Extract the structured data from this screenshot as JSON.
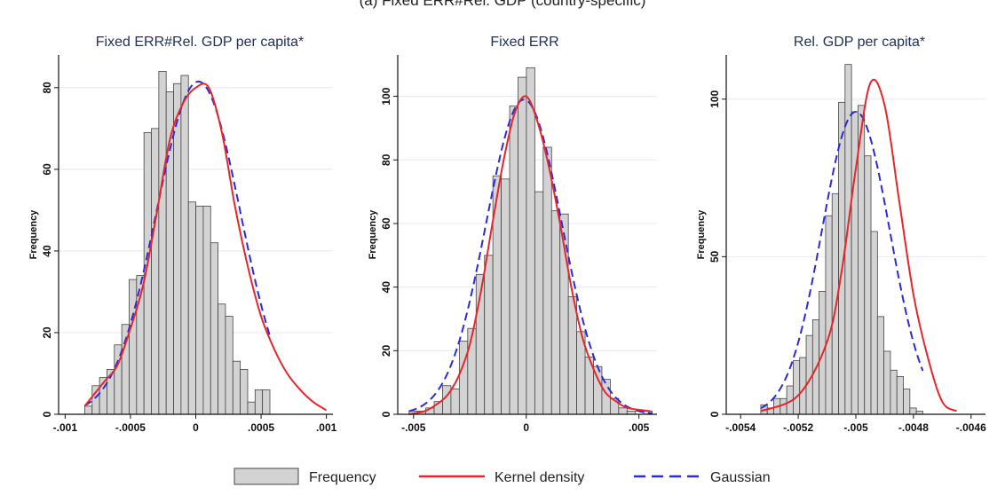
{
  "caption": "(a) Fixed ERR#Rel. GDP (country-specific)",
  "colors": {
    "bar_fill": "#d3d3d3",
    "bar_stroke": "#444444",
    "kernel": "#e8252a",
    "gaussian": "#2b2bd8",
    "grid": "#e8e8ee",
    "title": "#1f2f5a"
  },
  "legend": {
    "position": "bottom",
    "items": [
      "Frequency",
      "Kernel density",
      "Gaussian"
    ]
  },
  "chart_data": [
    {
      "type": "bar",
      "title": "Fixed ERR#Rel. GDP per capita*",
      "ylabel": "Frequency",
      "xlim": [
        -0.00105,
        0.00105
      ],
      "ylim": [
        0,
        88
      ],
      "xticks": [
        -0.001,
        -0.0005,
        0,
        0.0005,
        0.001
      ],
      "xtick_labels": [
        "-.001",
        "-.0005",
        "0",
        ".0005",
        ".001"
      ],
      "yticks": [
        0,
        20,
        40,
        60,
        80
      ],
      "bin_start": -0.00085,
      "bin_width": 5.67e-05,
      "values": [
        2,
        7,
        9,
        11,
        17,
        22,
        33,
        34,
        69,
        70,
        84,
        79,
        81,
        83,
        52,
        51,
        51,
        42,
        27,
        24,
        13,
        11,
        3,
        6,
        6
      ],
      "gaussian": {
        "mean": 2e-05,
        "sd": 0.000322,
        "peak": 81.5
      },
      "kernel": {
        "x": [
          -0.00085,
          -0.0007,
          -0.0006,
          -0.0005,
          -0.0004,
          -0.0003,
          -0.0002,
          -0.0001,
          0,
          0.0001,
          0.0002,
          0.0003,
          0.0004,
          0.0005,
          0.0006,
          0.0007,
          0.0008,
          0.0009,
          0.001
        ],
        "y": [
          2,
          8,
          12,
          21,
          32,
          49,
          67,
          76,
          80,
          80,
          69,
          51,
          36,
          24,
          16,
          10,
          6,
          3,
          1
        ]
      }
    },
    {
      "type": "bar",
      "title": "Fixed ERR",
      "ylabel": "Frequency",
      "xlim": [
        -0.0057,
        0.0058
      ],
      "ylim": [
        0,
        113
      ],
      "xticks": [
        -0.005,
        0,
        0.005
      ],
      "xtick_labels": [
        "-.005",
        "0",
        ".005"
      ],
      "yticks": [
        0,
        20,
        40,
        60,
        80,
        100
      ],
      "bin_start": -0.0052,
      "bin_width": 0.000372,
      "values": [
        1,
        1,
        2,
        4,
        9,
        8,
        23,
        27,
        44,
        50,
        75,
        74,
        97,
        106,
        109,
        70,
        84,
        64,
        63,
        37,
        26,
        18,
        15,
        11,
        5,
        2,
        1,
        0,
        1
      ],
      "gaussian": {
        "mean": -0.0001,
        "sd": 0.00168,
        "peak": 99
      },
      "kernel": {
        "x": [
          -0.0052,
          -0.0045,
          -0.004,
          -0.0035,
          -0.003,
          -0.0025,
          -0.002,
          -0.0015,
          -0.001,
          -0.0005,
          0,
          0.0005,
          0.001,
          0.0015,
          0.002,
          0.0025,
          0.003,
          0.0035,
          0.004,
          0.0045,
          0.0055
        ],
        "y": [
          0,
          1,
          3,
          6,
          12,
          22,
          39,
          60,
          80,
          95,
          100,
          92,
          78,
          60,
          40,
          24,
          14,
          7,
          4,
          2,
          1
        ]
      }
    },
    {
      "type": "bar",
      "title": "Rel. GDP per capita*",
      "ylabel": "Frequency",
      "xlim": [
        -0.00545,
        -0.00455
      ],
      "ylim": [
        0,
        114
      ],
      "xticks": [
        -0.0054,
        -0.0052,
        -0.005,
        -0.0048,
        -0.0046
      ],
      "xtick_labels": [
        "-.0054",
        "-.0052",
        "-.005",
        "-.0048",
        "-.0046"
      ],
      "yticks": [
        0,
        50,
        100
      ],
      "bin_start": -0.00533,
      "bin_width": 2.25e-05,
      "values": [
        3,
        2,
        5,
        5,
        9,
        17,
        18,
        25,
        30,
        39,
        63,
        70,
        99,
        111,
        96,
        98,
        82,
        58,
        31,
        20,
        14,
        12,
        8,
        2,
        1
      ],
      "gaussian": {
        "mean": -0.005,
        "sd": 0.000118,
        "peak": 96
      },
      "kernel": {
        "x": [
          -0.00533,
          -0.0052,
          -0.0051,
          -0.00505,
          -0.005,
          -0.00495,
          -0.0049,
          -0.00485,
          -0.0048,
          -0.00475,
          -0.0047,
          -0.00465
        ],
        "y": [
          1,
          6,
          23,
          45,
          78,
          105,
          98,
          68,
          38,
          18,
          4,
          1
        ]
      }
    }
  ]
}
